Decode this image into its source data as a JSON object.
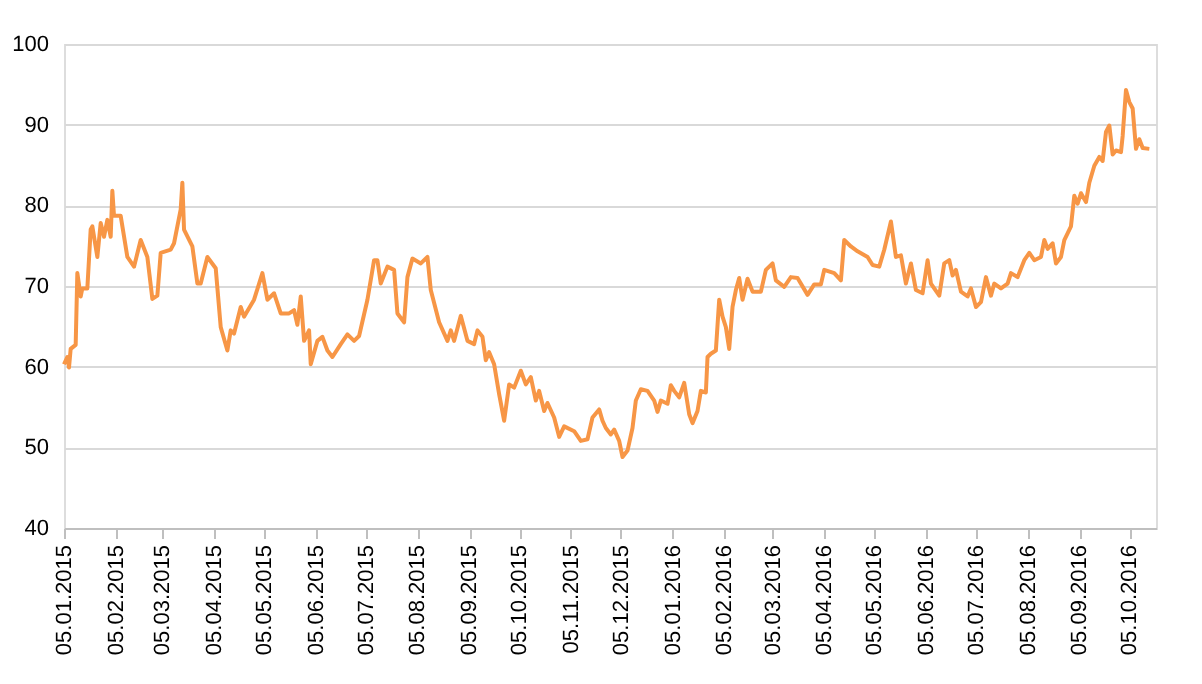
{
  "chart_data": {
    "type": "line",
    "x": [
      "2015-01-05",
      "2015-01-07",
      "2015-01-08",
      "2015-01-09",
      "2015-01-12",
      "2015-01-13",
      "2015-01-15",
      "2015-01-16",
      "2015-01-19",
      "2015-01-21",
      "2015-01-22",
      "2015-01-25",
      "2015-01-27",
      "2015-01-29",
      "2015-01-31",
      "2015-02-02",
      "2015-02-03",
      "2015-02-04",
      "2015-02-08",
      "2015-02-12",
      "2015-02-16",
      "2015-02-20",
      "2015-02-24",
      "2015-02-27",
      "2015-03-02",
      "2015-03-04",
      "2015-03-10",
      "2015-03-12",
      "2015-03-16",
      "2015-03-17",
      "2015-03-18",
      "2015-03-23",
      "2015-03-26",
      "2015-03-28",
      "2015-04-01",
      "2015-04-06",
      "2015-04-09",
      "2015-04-13",
      "2015-04-15",
      "2015-04-17",
      "2015-04-21",
      "2015-04-23",
      "2015-04-29",
      "2015-05-04",
      "2015-05-07",
      "2015-05-11",
      "2015-05-15",
      "2015-05-20",
      "2015-05-23",
      "2015-05-25",
      "2015-05-27",
      "2015-05-29",
      "2015-06-01",
      "2015-06-02",
      "2015-06-06",
      "2015-06-09",
      "2015-06-12",
      "2015-06-15",
      "2015-06-20",
      "2015-06-24",
      "2015-06-28",
      "2015-07-01",
      "2015-07-06",
      "2015-07-10",
      "2015-07-12",
      "2015-07-14",
      "2015-07-18",
      "2015-07-22",
      "2015-07-24",
      "2015-07-28",
      "2015-07-30",
      "2015-08-02",
      "2015-08-07",
      "2015-08-11",
      "2015-08-13",
      "2015-08-18",
      "2015-08-23",
      "2015-08-25",
      "2015-08-27",
      "2015-08-31",
      "2015-09-04",
      "2015-09-08",
      "2015-09-10",
      "2015-09-13",
      "2015-09-15",
      "2015-09-17",
      "2015-09-20",
      "2015-09-23",
      "2015-09-26",
      "2015-09-29",
      "2015-10-02",
      "2015-10-06",
      "2015-10-09",
      "2015-10-12",
      "2015-10-15",
      "2015-10-17",
      "2015-10-20",
      "2015-10-22",
      "2015-10-26",
      "2015-10-29",
      "2015-11-01",
      "2015-11-07",
      "2015-11-11",
      "2015-11-15",
      "2015-11-18",
      "2015-11-22",
      "2015-11-24",
      "2015-11-26",
      "2015-11-29",
      "2015-12-01",
      "2015-12-04",
      "2015-12-06",
      "2015-12-09",
      "2015-12-12",
      "2015-12-14",
      "2015-12-17",
      "2015-12-21",
      "2015-12-25",
      "2015-12-27",
      "2015-12-29",
      "2016-01-02",
      "2016-01-04",
      "2016-01-06",
      "2016-01-09",
      "2016-01-12",
      "2016-01-15",
      "2016-01-17",
      "2016-01-20",
      "2016-01-22",
      "2016-01-25",
      "2016-01-26",
      "2016-01-28",
      "2016-01-31",
      "2016-02-02",
      "2016-02-04",
      "2016-02-06",
      "2016-02-08",
      "2016-02-10",
      "2016-02-12",
      "2016-02-14",
      "2016-02-16",
      "2016-02-19",
      "2016-02-22",
      "2016-02-27",
      "2016-03-01",
      "2016-03-05",
      "2016-03-07",
      "2016-03-12",
      "2016-03-16",
      "2016-03-20",
      "2016-03-26",
      "2016-03-30",
      "2016-04-03",
      "2016-04-05",
      "2016-04-11",
      "2016-04-15",
      "2016-04-17",
      "2016-04-21",
      "2016-04-25",
      "2016-05-01",
      "2016-05-04",
      "2016-05-08",
      "2016-05-11",
      "2016-05-15",
      "2016-05-18",
      "2016-05-21",
      "2016-05-24",
      "2016-05-27",
      "2016-05-30",
      "2016-06-03",
      "2016-06-06",
      "2016-06-08",
      "2016-06-13",
      "2016-06-16",
      "2016-06-19",
      "2016-06-21",
      "2016-06-23",
      "2016-06-26",
      "2016-06-30",
      "2016-07-02",
      "2016-07-05",
      "2016-07-08",
      "2016-07-11",
      "2016-07-14",
      "2016-07-16",
      "2016-07-20",
      "2016-07-24",
      "2016-07-26",
      "2016-07-30",
      "2016-08-03",
      "2016-08-06",
      "2016-08-09",
      "2016-08-13",
      "2016-08-15",
      "2016-08-17",
      "2016-08-20",
      "2016-08-22",
      "2016-08-25",
      "2016-08-27",
      "2016-08-31",
      "2016-09-02",
      "2016-09-04",
      "2016-09-06",
      "2016-09-09",
      "2016-09-11",
      "2016-09-14",
      "2016-09-17",
      "2016-09-19",
      "2016-09-21",
      "2016-09-23",
      "2016-09-25",
      "2016-09-27",
      "2016-09-30",
      "2016-10-01",
      "2016-10-03",
      "2016-10-05",
      "2016-10-07",
      "2016-10-09",
      "2016-10-11",
      "2016-10-13",
      "2016-10-17"
    ],
    "series": [
      {
        "color": "#f79646",
        "values": [
          60.3,
          61.2,
          59.9,
          62.2,
          62.7,
          71.6,
          68.7,
          69.7,
          69.7,
          77,
          77.4,
          73.6,
          77.8,
          76.1,
          78.2,
          76.1,
          81.8,
          78.7,
          78.7,
          73.6,
          72.4,
          75.7,
          73.6,
          68.4,
          68.8,
          74.1,
          74.5,
          75.3,
          79.5,
          82.8,
          77,
          74.9,
          70.3,
          70.3,
          73.6,
          72.2,
          64.9,
          62,
          64.5,
          64.1,
          67.4,
          66.2,
          68.3,
          71.6,
          68.3,
          69.1,
          66.6,
          66.6,
          67,
          65.2,
          68.7,
          63.2,
          64.5,
          60.3,
          63.2,
          63.7,
          62,
          61.2,
          62.8,
          64,
          63.2,
          63.8,
          68.3,
          73.2,
          73.2,
          70.3,
          72.4,
          72,
          66.6,
          65.5,
          71.1,
          73.4,
          72.8,
          73.6,
          69.5,
          65.5,
          63.2,
          64.5,
          63.2,
          66.3,
          63.2,
          62.8,
          64.5,
          63.7,
          60.8,
          61.8,
          60.3,
          56.6,
          53.3,
          57.8,
          57.4,
          59.5,
          57.8,
          58.7,
          55.8,
          57,
          54.5,
          55.5,
          53.7,
          51.3,
          52.6,
          52,
          50.8,
          51,
          53.7,
          54.7,
          53.3,
          52.4,
          51.6,
          52.2,
          50.8,
          48.8,
          49.6,
          52.4,
          55.8,
          57.2,
          57,
          55.8,
          54.4,
          55.8,
          55.4,
          57.7,
          57,
          56.2,
          58,
          54.1,
          53,
          54.5,
          57,
          56.8,
          61.2,
          61.6,
          62,
          68.3,
          66.2,
          64.9,
          62.2,
          67.4,
          69.5,
          71,
          68.3,
          70.9,
          69.3,
          69.3,
          72,
          72.8,
          70.7,
          69.9,
          71.1,
          71,
          68.9,
          70.2,
          70.2,
          72,
          71.6,
          70.7,
          75.7,
          74.9,
          74.3,
          73.6,
          72.6,
          72.4,
          74.5,
          78,
          73.6,
          73.8,
          70.3,
          72.8,
          69.5,
          69.1,
          73.2,
          70.3,
          68.8,
          72.8,
          73.2,
          71.3,
          72,
          69.3,
          68.7,
          69.7,
          67.4,
          68,
          71.1,
          68.8,
          70.3,
          69.7,
          70.3,
          71.6,
          71.1,
          73.2,
          74.1,
          73.2,
          73.6,
          75.7,
          74.6,
          75.3,
          72.8,
          73.6,
          75.7,
          77.4,
          81.2,
          80.2,
          81.5,
          80.4,
          82.8,
          84.9,
          86,
          85.5,
          89.1,
          89.9,
          86.3,
          86.8,
          86.6,
          88.6,
          94.3,
          92.8,
          92,
          87,
          88.2,
          87.1,
          87
        ]
      }
    ],
    "xlim": [
      "2015-01-05",
      "2016-10-21"
    ],
    "xticks": [
      {
        "value": "2015-01-05",
        "label": "05.01.2015"
      },
      {
        "value": "2015-02-05",
        "label": "05.02.2015"
      },
      {
        "value": "2015-03-05",
        "label": "05.03.2015"
      },
      {
        "value": "2015-04-05",
        "label": "05.04.2015"
      },
      {
        "value": "2015-05-05",
        "label": "05.05.2015"
      },
      {
        "value": "2015-06-05",
        "label": "05.06.2015"
      },
      {
        "value": "2015-07-05",
        "label": "05.07.2015"
      },
      {
        "value": "2015-08-05",
        "label": "05.08.2015"
      },
      {
        "value": "2015-09-05",
        "label": "05.09.2015"
      },
      {
        "value": "2015-10-05",
        "label": "05.10.2015"
      },
      {
        "value": "2015-11-05",
        "label": "05.11.2015"
      },
      {
        "value": "2015-12-05",
        "label": "05.12.2015"
      },
      {
        "value": "2016-01-05",
        "label": "05.01.2016"
      },
      {
        "value": "2016-02-05",
        "label": "05.02.2016"
      },
      {
        "value": "2016-03-05",
        "label": "05.03.2016"
      },
      {
        "value": "2016-04-05",
        "label": "05.04.2016"
      },
      {
        "value": "2016-05-05",
        "label": "05.05.2016"
      },
      {
        "value": "2016-06-05",
        "label": "05.06.2016"
      },
      {
        "value": "2016-07-05",
        "label": "05.07.2016"
      },
      {
        "value": "2016-08-05",
        "label": "05.08.2016"
      },
      {
        "value": "2016-09-05",
        "label": "05.09.2016"
      },
      {
        "value": "2016-10-05",
        "label": "05.10.2016"
      }
    ],
    "ylim": [
      40,
      100
    ],
    "yticks": [
      40,
      50,
      60,
      70,
      80,
      90,
      100
    ],
    "grid": "y",
    "marker": "none",
    "line_style": "solid"
  }
}
